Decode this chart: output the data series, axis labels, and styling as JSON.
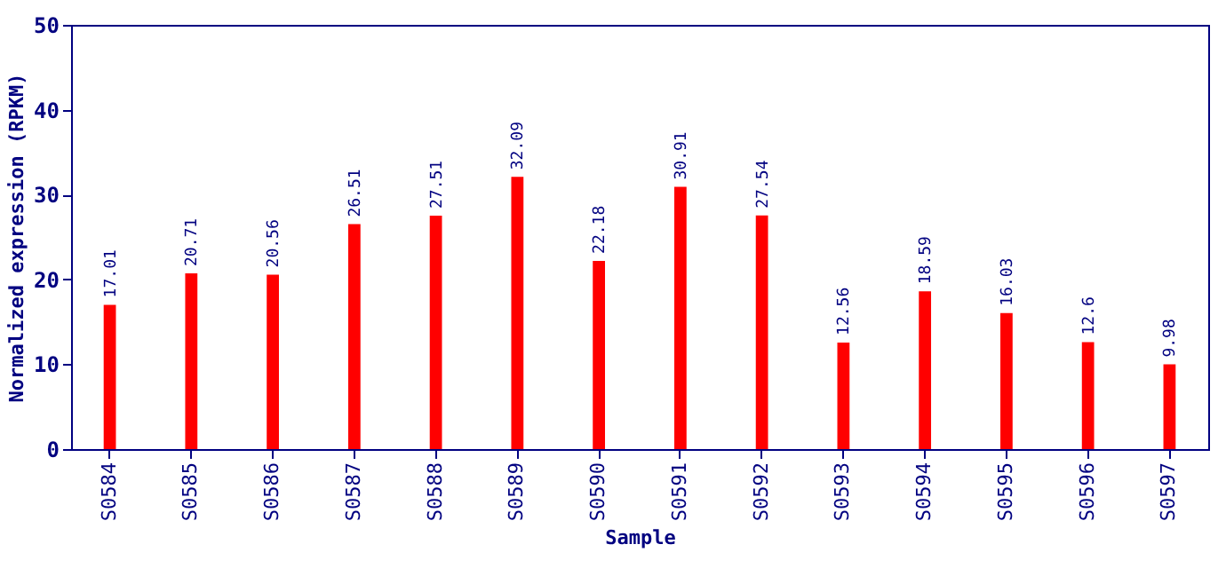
{
  "chart_data": {
    "type": "bar",
    "xlabel": "Sample",
    "ylabel": "Normalized expression (RPKM)",
    "categories": [
      "S0584",
      "S0585",
      "S0586",
      "S0587",
      "S0588",
      "S0589",
      "S0590",
      "S0591",
      "S0592",
      "S0593",
      "S0594",
      "S0595",
      "S0596",
      "S0597"
    ],
    "values": [
      17.01,
      20.71,
      20.56,
      26.51,
      27.51,
      32.09,
      22.18,
      30.91,
      27.54,
      12.56,
      18.59,
      16.03,
      12.6,
      9.98
    ],
    "value_labels": [
      "17.01",
      "20.71",
      "20.56",
      "26.51",
      "27.51",
      "32.09",
      "22.18",
      "30.91",
      "27.54",
      "12.56",
      "18.59",
      "16.03",
      "12.6",
      "9.98"
    ],
    "color": "#ff0000",
    "ylim": [
      0,
      50
    ],
    "yticks": [
      0,
      10,
      20,
      30,
      40,
      50
    ],
    "grid": false
  }
}
